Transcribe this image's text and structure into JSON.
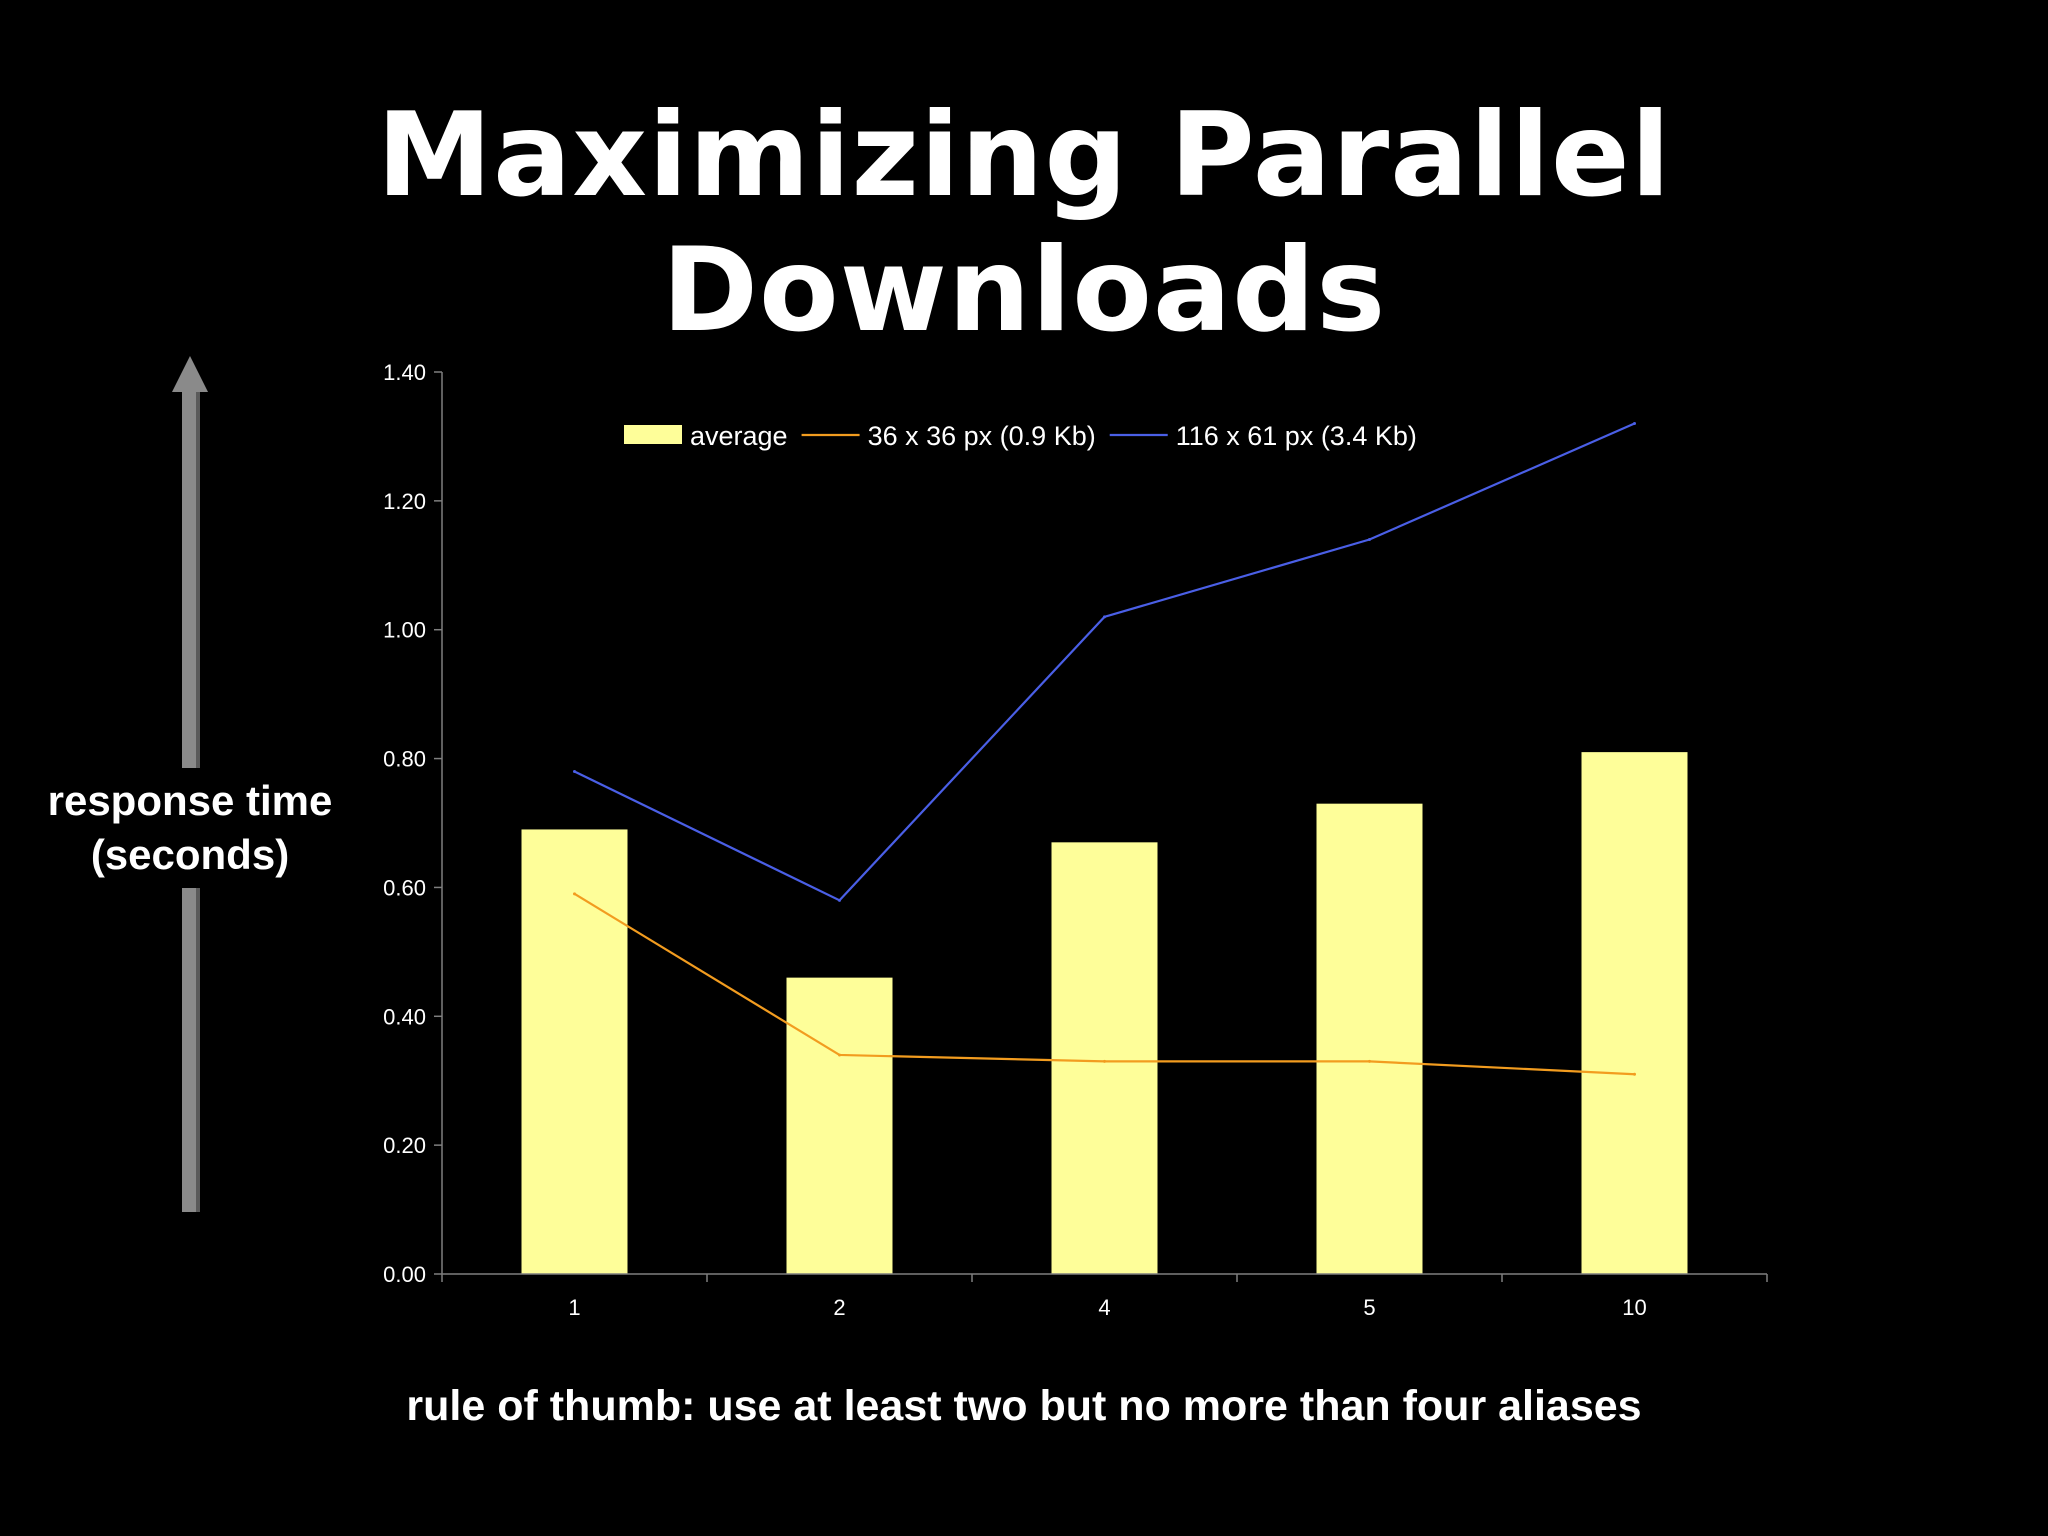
{
  "slide": {
    "title": "Maximizing Parallel Downloads",
    "yaxis_note_line1": "response time",
    "yaxis_note_line2": "(seconds)",
    "footer": "rule of thumb: use at least two but no more than four aliases"
  },
  "colors": {
    "background": "#000000",
    "bar": "#fefe99",
    "series_small": "#f29c1f",
    "series_large": "#4a5fe6",
    "axis": "#7f7f7f",
    "arrow": "#8a8a8a"
  },
  "chart_data": {
    "type": "bar",
    "categories": [
      "1",
      "2",
      "4",
      "5",
      "10"
    ],
    "ylim": [
      0,
      1.4
    ],
    "yticks": [
      "0.00",
      "0.20",
      "0.40",
      "0.60",
      "0.80",
      "1.00",
      "1.20",
      "1.40"
    ],
    "grid": false,
    "legend_position": "top",
    "series": [
      {
        "name": "average",
        "kind": "bar",
        "values": [
          0.69,
          0.46,
          0.67,
          0.73,
          0.81
        ]
      },
      {
        "name": "36 x 36 px (0.9 Kb)",
        "kind": "line",
        "values": [
          0.59,
          0.34,
          0.33,
          0.33,
          0.31
        ]
      },
      {
        "name": "116 x 61 px (3.4 Kb)",
        "kind": "line",
        "values": [
          0.78,
          0.58,
          1.02,
          1.14,
          1.32
        ]
      }
    ]
  }
}
